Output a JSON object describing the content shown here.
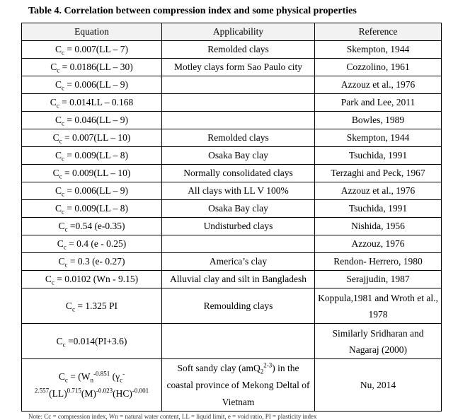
{
  "caption": "Table 4. Correlation between compression index and some physical properties",
  "headers": {
    "equation": "Equation",
    "applicability": "Applicability",
    "reference": "Reference"
  },
  "rows": [
    {
      "cc": "C",
      "eq": " = 0.007(LL – 7)",
      "app": "Remolded clays",
      "ref": "Skempton, 1944"
    },
    {
      "cc": "C",
      "eq": " = 0.0186(LL – 30)",
      "app": "Motley clays form Sao Paulo city",
      "ref": "Cozzolino, 1961"
    },
    {
      "cc": "C",
      "eq": " = 0.006(LL – 9)",
      "app": "",
      "ref": "Azzouz et al., 1976"
    },
    {
      "cc": "C",
      "eq": " = 0.014LL – 0.168",
      "app": "",
      "ref": "Park and Lee, 2011"
    },
    {
      "cc": "C",
      "eq": " = 0.046(LL – 9)",
      "app": "",
      "ref": "Bowles, 1989"
    },
    {
      "cc": "C",
      "eq": " = 0.007(LL – 10)",
      "app": "Remolded clays",
      "ref": "Skempton, 1944"
    },
    {
      "cc": "C",
      "eq": " = 0.009(LL – 8)",
      "app": "Osaka Bay clay",
      "ref": "Tsuchida, 1991"
    },
    {
      "cc": "C",
      "eq": " = 0.009(LL – 10)",
      "app": "Normally consolidated clays",
      "ref": "Terzaghi and Peck, 1967"
    },
    {
      "cc": "C",
      "eq": " = 0.006(LL – 9)",
      "app": "All clays with LL V 100%",
      "ref": "Azzouz et al., 1976"
    },
    {
      "cc": "C",
      "eq": " = 0.009(LL – 8)",
      "app": "Osaka Bay clay",
      "ref": "Tsuchida, 1991"
    },
    {
      "cc": "C",
      "eq": " =0.54 (e-0.35)",
      "app": "Undisturbed clays",
      "ref": "Nishida, 1956"
    },
    {
      "cc": "C",
      "eq": " = 0.4 (e - 0.25)",
      "app": "",
      "ref": "Azzouz, 1976"
    },
    {
      "cc": "C",
      "eq": " = 0.3 (e- 0.27)",
      "app": "America’s clay",
      "ref": "Rendon- Herrero, 1980"
    },
    {
      "cc": "C",
      "eq": " = 0.0102 (Wn - 9.15)",
      "app": "Alluvial clay and silt in Bangladesh",
      "ref": "Serajjudin, 1987"
    }
  ],
  "row_koppula": {
    "cc": "C",
    "eq": " = 1.325 PI",
    "app": "Remoulding clays",
    "ref": "Koppula,1981 and Wroth et al., 1978"
  },
  "row_sridharan": {
    "cc": "C",
    "eq": " =0.014(PI+3.6)",
    "app": "",
    "ref": "Similarly Sridharan and Nagaraj (2000)"
  },
  "row_nu": {
    "cc": "C",
    "p1": " = (W",
    "n": "n",
    "e1": "-0.851",
    "p2": " (γ",
    "c2": "c",
    "e2": "-2.557",
    "p3": "(LL)",
    "e3": "0.715",
    "p4": "(M)",
    "e4": "-0.023",
    "p5": "(HC)",
    "e5": "-0.001",
    "app_a": "Soft sandy clay (amQ",
    "app_sub": "2",
    "app_sup": "2-3",
    "app_b": ") in the coastal province of Mekong Deltal of Vietnam",
    "ref": "Nu, 2014"
  },
  "subscript_c": "c",
  "note": "Note: Cc = compression index, Wn = natural water content, LL = liquid limit, e = void ratio, PI = plasticity index"
}
